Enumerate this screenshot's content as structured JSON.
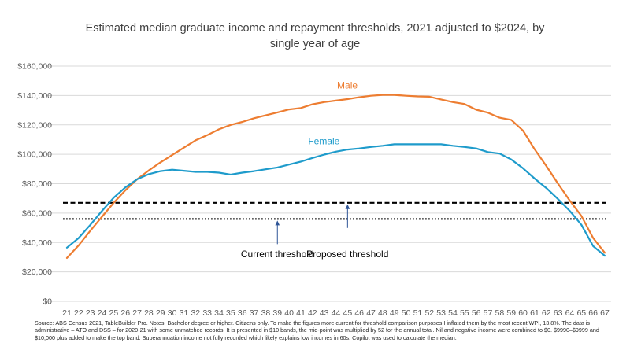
{
  "chart_data": {
    "type": "line",
    "title_lines": [
      "Estimated median graduate income and repayment thresholds, 2021 adjusted to $2024, by",
      "single year of age"
    ],
    "x": [
      21,
      22,
      23,
      24,
      25,
      26,
      27,
      28,
      29,
      30,
      31,
      32,
      33,
      34,
      35,
      36,
      37,
      38,
      39,
      40,
      41,
      42,
      43,
      44,
      45,
      46,
      47,
      48,
      49,
      50,
      51,
      52,
      53,
      54,
      55,
      56,
      57,
      58,
      59,
      60,
      61,
      62,
      63,
      64,
      65,
      66,
      67
    ],
    "x_tick_labels": [
      "21",
      "22",
      "23",
      "24",
      "25",
      "26",
      "27",
      "28",
      "29",
      "30",
      "31",
      "32",
      "33",
      "34",
      "35",
      "36",
      "37",
      "38",
      "39",
      "40",
      "41",
      "42",
      "43",
      "44",
      "45",
      "46",
      "47",
      "48",
      "49",
      "50",
      "51",
      "52",
      "53",
      "54",
      "55",
      "56",
      "57",
      "58",
      "59",
      "60",
      "61",
      "62",
      "63",
      "64",
      "65",
      "66",
      "67"
    ],
    "ylim": [
      0,
      160000
    ],
    "y_ticks": [
      0,
      20000,
      40000,
      60000,
      80000,
      100000,
      120000,
      140000,
      160000
    ],
    "y_tick_labels": [
      "$0",
      "$20,000",
      "$40,000",
      "$60,000",
      "$80,000",
      "$100,000",
      "$120,000",
      "$140,000",
      "$160,000"
    ],
    "grid": true,
    "series": [
      {
        "name": "Male",
        "color": "#ED7D31",
        "values": [
          29500,
          38000,
          48000,
          57500,
          67000,
          75500,
          83000,
          89000,
          94500,
          99500,
          104500,
          109500,
          113000,
          117000,
          120000,
          122000,
          124500,
          126500,
          128500,
          130500,
          131500,
          134000,
          135500,
          136500,
          137500,
          138800,
          139800,
          140400,
          140400,
          139800,
          139400,
          139200,
          137300,
          135500,
          134200,
          130300,
          128300,
          124900,
          123400,
          116100,
          103400,
          92000,
          80000,
          68500,
          58000,
          43000,
          33000
        ]
      },
      {
        "name": "Female",
        "color": "#1E9BCB",
        "values": [
          36500,
          43000,
          52000,
          61500,
          70500,
          77500,
          83000,
          86500,
          88500,
          89500,
          88800,
          88000,
          88000,
          87500,
          86200,
          87500,
          88500,
          89800,
          91000,
          93000,
          95000,
          97500,
          99800,
          101800,
          103200,
          104000,
          105000,
          105800,
          106800,
          106800,
          106800,
          106800,
          106800,
          105800,
          105000,
          104000,
          101500,
          100500,
          96500,
          90500,
          83500,
          77000,
          69500,
          61500,
          52000,
          37500,
          31000
        ]
      }
    ],
    "thresholds": [
      {
        "name": "Current threshold",
        "value": 56000,
        "style": "dotted"
      },
      {
        "name": "Proposed threshold",
        "value": 67000,
        "style": "dashed"
      }
    ],
    "annotations": [
      {
        "text": "Current threshold",
        "points_to": "Current threshold",
        "at_x": 39
      },
      {
        "text": "Proposed threshold",
        "points_to": "Proposed threshold",
        "at_x": 45
      }
    ],
    "series_label_positions": {
      "Male": [
        47,
        147000
      ],
      "Female": [
        45,
        109000
      ]
    }
  },
  "source_note": "Source: ABS Census 2021, TableBuilder Pro.  Notes: Bachelor degree or higher. Citizens only. To make the figures more current for threshold comparison purposes I inflated them by the most recent WPI, 13.8%.  The data is administrative – ATO and DSS – for 2020-21 with some unmatched records. It is presented in $10 bands, the mid-point was multiplied by 52 for the annual total. Nil and negative income were combined to $0. $9990–$9999 and $10,000 plus added to make the top band. Superannuation income not fully recorded which likely explains low incomes in 60s. Copilot was used to calculate the median."
}
